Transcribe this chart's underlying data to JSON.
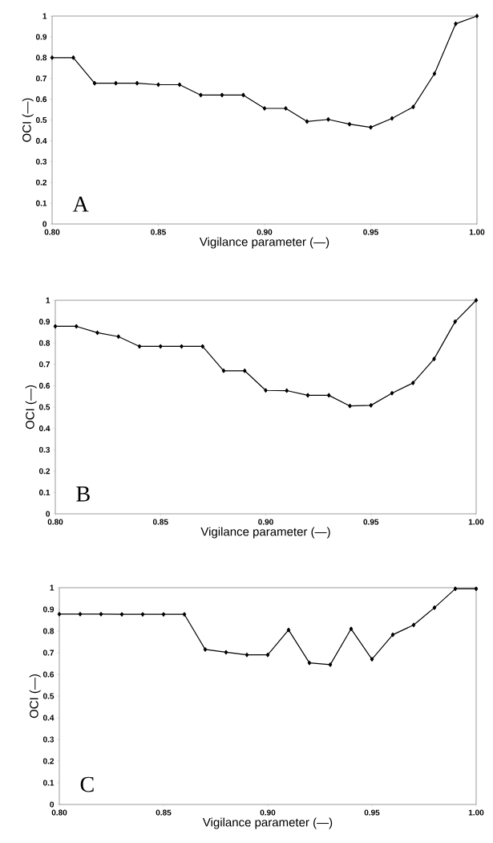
{
  "chart_data": [
    {
      "type": "line",
      "xlabel": "Vigilance parameter (—)",
      "ylabel": "OCI (—)",
      "annotations": [
        "A"
      ],
      "marker": "diamond",
      "color": "#000000",
      "x": [
        0.8,
        0.81,
        0.82,
        0.83,
        0.84,
        0.85,
        0.86,
        0.87,
        0.88,
        0.89,
        0.9,
        0.91,
        0.92,
        0.93,
        0.94,
        0.95,
        0.96,
        0.97,
        0.98,
        0.99,
        1.0
      ],
      "values": [
        0.8,
        0.8,
        0.677,
        0.677,
        0.677,
        0.67,
        0.67,
        0.62,
        0.62,
        0.62,
        0.556,
        0.556,
        0.493,
        0.503,
        0.48,
        0.465,
        0.508,
        0.563,
        0.723,
        0.963,
        1.0
      ],
      "xlim": [
        0.8,
        1.0
      ],
      "ylim": [
        0,
        1
      ],
      "xticks": [
        {
          "value": 0.8,
          "label": "0.80"
        },
        {
          "value": 0.85,
          "label": "0.85"
        },
        {
          "value": 0.9,
          "label": "0.90"
        },
        {
          "value": 0.95,
          "label": "0.95"
        },
        {
          "value": 1.0,
          "label": "1.00"
        }
      ],
      "yticks": [
        0,
        0.1,
        0.2,
        0.3,
        0.4,
        0.5,
        0.6,
        0.7,
        0.8,
        0.9,
        1
      ]
    },
    {
      "type": "line",
      "xlabel": "Vigilance parameter (—)",
      "ylabel": "OCI (—)",
      "annotations": [
        "B"
      ],
      "marker": "diamond",
      "color": "#000000",
      "x": [
        0.8,
        0.81,
        0.82,
        0.83,
        0.84,
        0.85,
        0.86,
        0.87,
        0.88,
        0.89,
        0.9,
        0.91,
        0.92,
        0.93,
        0.94,
        0.95,
        0.96,
        0.97,
        0.98,
        0.99,
        1.0
      ],
      "values": [
        0.878,
        0.878,
        0.848,
        0.83,
        0.784,
        0.784,
        0.784,
        0.784,
        0.67,
        0.67,
        0.578,
        0.577,
        0.555,
        0.555,
        0.505,
        0.508,
        0.565,
        0.613,
        0.725,
        0.9,
        1.0
      ],
      "xlim": [
        0.8,
        1.0
      ],
      "ylim": [
        0,
        1
      ],
      "xticks": [
        {
          "value": 0.8,
          "label": "0.80"
        },
        {
          "value": 0.85,
          "label": "0.85"
        },
        {
          "value": 0.9,
          "label": "0.90"
        },
        {
          "value": 0.95,
          "label": "0.95"
        },
        {
          "value": 1.0,
          "label": "1.00"
        }
      ],
      "yticks": [
        0,
        0.1,
        0.2,
        0.3,
        0.4,
        0.5,
        0.6,
        0.7,
        0.8,
        0.9,
        1
      ]
    },
    {
      "type": "line",
      "xlabel": "Vigilance parameter (—)",
      "ylabel": "OCI (—)",
      "annotations": [
        "C"
      ],
      "marker": "diamond",
      "color": "#000000",
      "x": [
        0.8,
        0.81,
        0.82,
        0.83,
        0.84,
        0.85,
        0.86,
        0.87,
        0.88,
        0.89,
        0.9,
        0.91,
        0.92,
        0.93,
        0.94,
        0.95,
        0.96,
        0.97,
        0.98,
        0.99,
        1.0
      ],
      "values": [
        0.878,
        0.878,
        0.878,
        0.877,
        0.877,
        0.877,
        0.877,
        0.715,
        0.702,
        0.69,
        0.69,
        0.805,
        0.653,
        0.645,
        0.81,
        0.67,
        0.783,
        0.828,
        0.908,
        0.995,
        0.995
      ],
      "xlim": [
        0.8,
        1.0
      ],
      "ylim": [
        0,
        1
      ],
      "xticks": [
        {
          "value": 0.8,
          "label": "0.80"
        },
        {
          "value": 0.85,
          "label": "0.85"
        },
        {
          "value": 0.9,
          "label": "0.90"
        },
        {
          "value": 0.95,
          "label": "0.95"
        },
        {
          "value": 1.0,
          "label": "1.00"
        }
      ],
      "yticks": [
        0,
        0.1,
        0.2,
        0.3,
        0.4,
        0.5,
        0.6,
        0.7,
        0.8,
        0.9,
        1
      ]
    }
  ]
}
